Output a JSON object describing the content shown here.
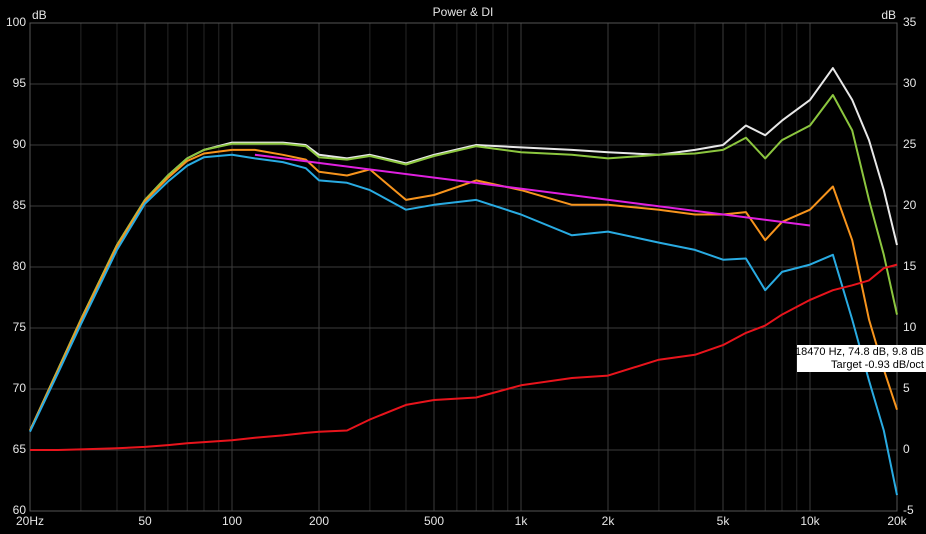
{
  "chart_data": {
    "type": "line",
    "title": "Power & DI",
    "y_label": "dB",
    "y2_label": "dB",
    "annotation": [
      "18470 Hz, 74.8 dB, 9.8 dB",
      "Target -0.93 dB/oct"
    ],
    "log_x": true,
    "grid": true,
    "x": [
      20,
      25,
      30,
      40,
      50,
      60,
      70,
      80,
      100,
      120,
      150,
      180,
      200,
      250,
      300,
      400,
      500,
      700,
      1000,
      1500,
      2000,
      3000,
      4000,
      5000,
      6000,
      7000,
      8000,
      10000,
      12000,
      14000,
      16000,
      18000,
      20000
    ],
    "xlim": [
      20,
      20000
    ],
    "xticks": [
      {
        "value": 20,
        "label": "20Hz"
      },
      50,
      100,
      200,
      500,
      {
        "value": 1000,
        "label": "1k"
      },
      {
        "value": 2000,
        "label": "2k"
      },
      {
        "value": 5000,
        "label": "5k"
      },
      {
        "value": 10000,
        "label": "10k"
      },
      {
        "value": 20000,
        "label": "20k"
      }
    ],
    "xgrid_minor": [
      30,
      40,
      60,
      70,
      80,
      90,
      300,
      400,
      600,
      700,
      800,
      900,
      3000,
      4000,
      6000,
      7000,
      8000,
      9000
    ],
    "ylim": [
      60,
      100
    ],
    "yticks": [
      60,
      65,
      70,
      75,
      80,
      85,
      90,
      95,
      100
    ],
    "y2lim": [
      -5,
      35
    ],
    "y2ticks": [
      -5,
      0,
      5,
      10,
      15,
      20,
      25,
      30,
      35
    ],
    "series": [
      {
        "color": "#e8e8e8",
        "values": [
          66.6,
          71.6,
          75.7,
          81.8,
          85.5,
          87.5,
          88.9,
          89.6,
          90.2,
          90.2,
          90.2,
          90.0,
          89.2,
          88.9,
          89.2,
          88.5,
          89.2,
          90.0,
          89.8,
          89.6,
          89.4,
          89.2,
          89.6,
          90.0,
          91.6,
          90.8,
          92.0,
          93.7,
          96.3,
          93.7,
          90.4,
          86.3,
          81.8
        ]
      },
      {
        "color": "#8cc63f",
        "values": [
          66.6,
          71.6,
          75.7,
          81.8,
          85.5,
          87.5,
          88.9,
          89.6,
          90.1,
          90.1,
          90.1,
          89.9,
          89.0,
          88.8,
          89.1,
          88.4,
          89.1,
          89.9,
          89.4,
          89.2,
          88.9,
          89.2,
          89.3,
          89.6,
          90.6,
          88.9,
          90.4,
          91.6,
          94.1,
          91.2,
          85.5,
          81.0,
          76.1
        ]
      },
      {
        "color": "#f7941d",
        "values": [
          66.6,
          71.5,
          75.6,
          81.7,
          85.4,
          87.3,
          88.7,
          89.3,
          89.6,
          89.6,
          89.2,
          88.8,
          87.8,
          87.5,
          88.0,
          85.5,
          85.9,
          87.1,
          86.3,
          85.1,
          85.1,
          84.7,
          84.3,
          84.3,
          84.5,
          82.2,
          83.7,
          84.7,
          86.6,
          82.2,
          75.7,
          71.6,
          68.3
        ]
      },
      {
        "color": "#29abe2",
        "values": [
          66.5,
          71.3,
          75.3,
          81.4,
          85.2,
          87.0,
          88.3,
          89.0,
          89.2,
          88.9,
          88.6,
          88.1,
          87.1,
          86.9,
          86.3,
          84.7,
          85.1,
          85.5,
          84.3,
          82.6,
          82.9,
          82.0,
          81.4,
          80.6,
          80.7,
          78.1,
          79.6,
          80.2,
          81.0,
          75.7,
          70.7,
          66.6,
          61.3
        ]
      },
      {
        "color": "#e8141c",
        "axis": "y2",
        "values": [
          0,
          0,
          0.05,
          0.15,
          0.25,
          0.4,
          0.55,
          0.65,
          0.8,
          1.0,
          1.2,
          1.4,
          1.5,
          1.6,
          2.5,
          3.7,
          4.1,
          4.3,
          5.3,
          5.9,
          6.1,
          7.4,
          7.8,
          8.6,
          9.6,
          10.2,
          11.1,
          12.3,
          13.1,
          13.5,
          13.9,
          14.9,
          15.2
        ]
      },
      {
        "color": "#e020e0",
        "x": [
          120,
          10000
        ],
        "values": [
          89.2,
          83.4
        ]
      }
    ]
  }
}
